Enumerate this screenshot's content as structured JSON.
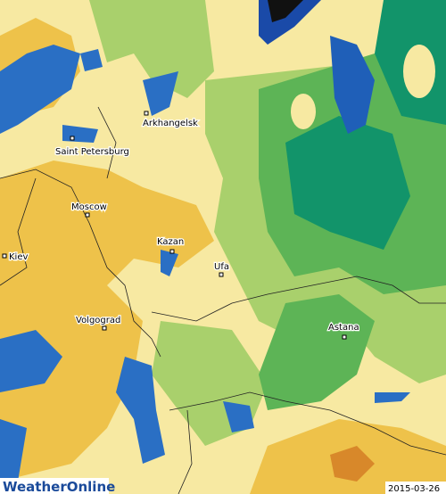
{
  "map": {
    "cities": [
      {
        "name": "Arkhangelsk"
      },
      {
        "name": "Saint Petersburg"
      },
      {
        "name": "Moscow"
      },
      {
        "name": "Kazan"
      },
      {
        "name": "Kiev"
      },
      {
        "name": "Ufa"
      },
      {
        "name": "Volgograd"
      },
      {
        "name": "Astana"
      }
    ],
    "logo": "WeatherOnline",
    "date": "2015-03-26"
  }
}
